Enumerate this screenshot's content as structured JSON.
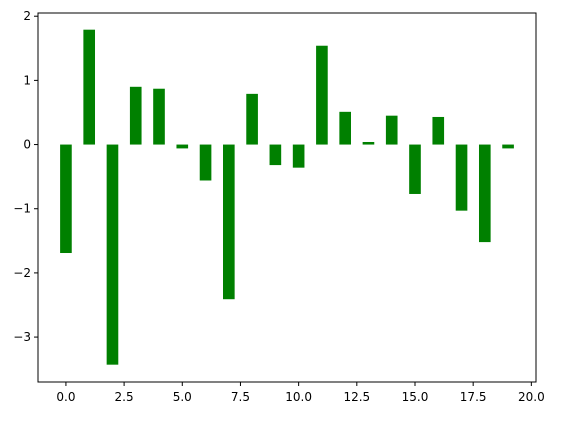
{
  "chart_data": {
    "type": "bar",
    "title": "",
    "xlabel": "",
    "ylabel": "",
    "x": [
      0,
      1,
      2,
      3,
      4,
      5,
      6,
      7,
      8,
      9,
      10,
      11,
      12,
      13,
      14,
      15,
      16,
      17,
      18,
      19
    ],
    "values": [
      -1.69,
      1.79,
      -3.43,
      0.9,
      0.87,
      -0.06,
      -0.56,
      -2.41,
      0.79,
      -0.32,
      -0.36,
      1.54,
      0.51,
      0.04,
      0.45,
      -0.77,
      0.43,
      -1.03,
      -1.52,
      -0.06
    ],
    "bar_width": 0.5,
    "color": "#008000",
    "xlim": [
      -1.2,
      20.2
    ],
    "ylim": [
      -3.7,
      2.05
    ],
    "xticks": [
      0.0,
      2.5,
      5.0,
      7.5,
      10.0,
      12.5,
      15.0,
      17.5,
      20.0
    ],
    "xtick_labels": [
      "0.0",
      "2.5",
      "5.0",
      "7.5",
      "10.0",
      "12.5",
      "15.0",
      "17.5",
      "20.0"
    ],
    "yticks": [
      -3,
      -2,
      -1,
      0,
      1,
      2
    ],
    "ytick_labels": [
      "−3",
      "−2",
      "−1",
      "0",
      "1",
      "2"
    ],
    "grid": false,
    "legend": "none"
  }
}
